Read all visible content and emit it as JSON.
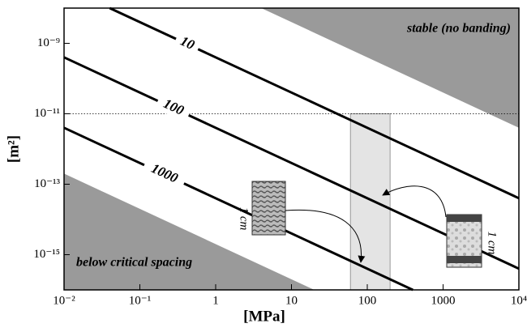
{
  "chart_data": {
    "type": "line",
    "xlabel": "[MPa]",
    "ylabel": "[m²]",
    "log_x": true,
    "log_y": true,
    "xlim": [
      0.01,
      10000
    ],
    "ylim": [
      1e-16,
      1e-08
    ],
    "xticks": [
      {
        "value": 0.01,
        "label": "10⁻²"
      },
      {
        "value": 0.1,
        "label": "10⁻¹"
      },
      1,
      10,
      100,
      1000,
      {
        "value": 10000,
        "label": "10⁴"
      }
    ],
    "yticks": [
      {
        "value": 1e-09,
        "label": "10⁻⁹"
      },
      {
        "value": 1e-11,
        "label": "10⁻¹¹"
      },
      {
        "value": 1e-13,
        "label": "10⁻¹³"
      },
      {
        "value": 1e-15,
        "label": "10⁻¹⁵"
      }
    ],
    "series": [
      {
        "name": "10",
        "color": "#000000",
        "x": [
          0.04,
          10000
        ],
        "values": [
          1e-08,
          4e-14
        ]
      },
      {
        "name": "100",
        "color": "#000000",
        "x": [
          0.01,
          10000
        ],
        "values": [
          4e-10,
          4e-16
        ]
      },
      {
        "name": "1000",
        "color": "#000000",
        "x": [
          0.01,
          400
        ],
        "values": [
          4e-12,
          1e-16
        ]
      }
    ],
    "shaded_regions": [
      {
        "label": "stable (no banding)",
        "color": "#9a9a9a",
        "x": [
          4,
          10000
        ],
        "values": [
          1e-08,
          4e-12
        ]
      },
      {
        "label": "below critical spacing",
        "color": "#9a9a9a",
        "x": [
          0.01,
          20
        ],
        "values": [
          2e-13,
          1e-16
        ]
      }
    ],
    "reference_line": 1e-11,
    "highlight": {
      "color": "#e4e4e4",
      "x": [
        60,
        200
      ],
      "values": [
        1e-16,
        1e-11
      ]
    },
    "insets": [
      {
        "label": "1 cm"
      },
      {
        "label": "1 cm"
      }
    ]
  }
}
